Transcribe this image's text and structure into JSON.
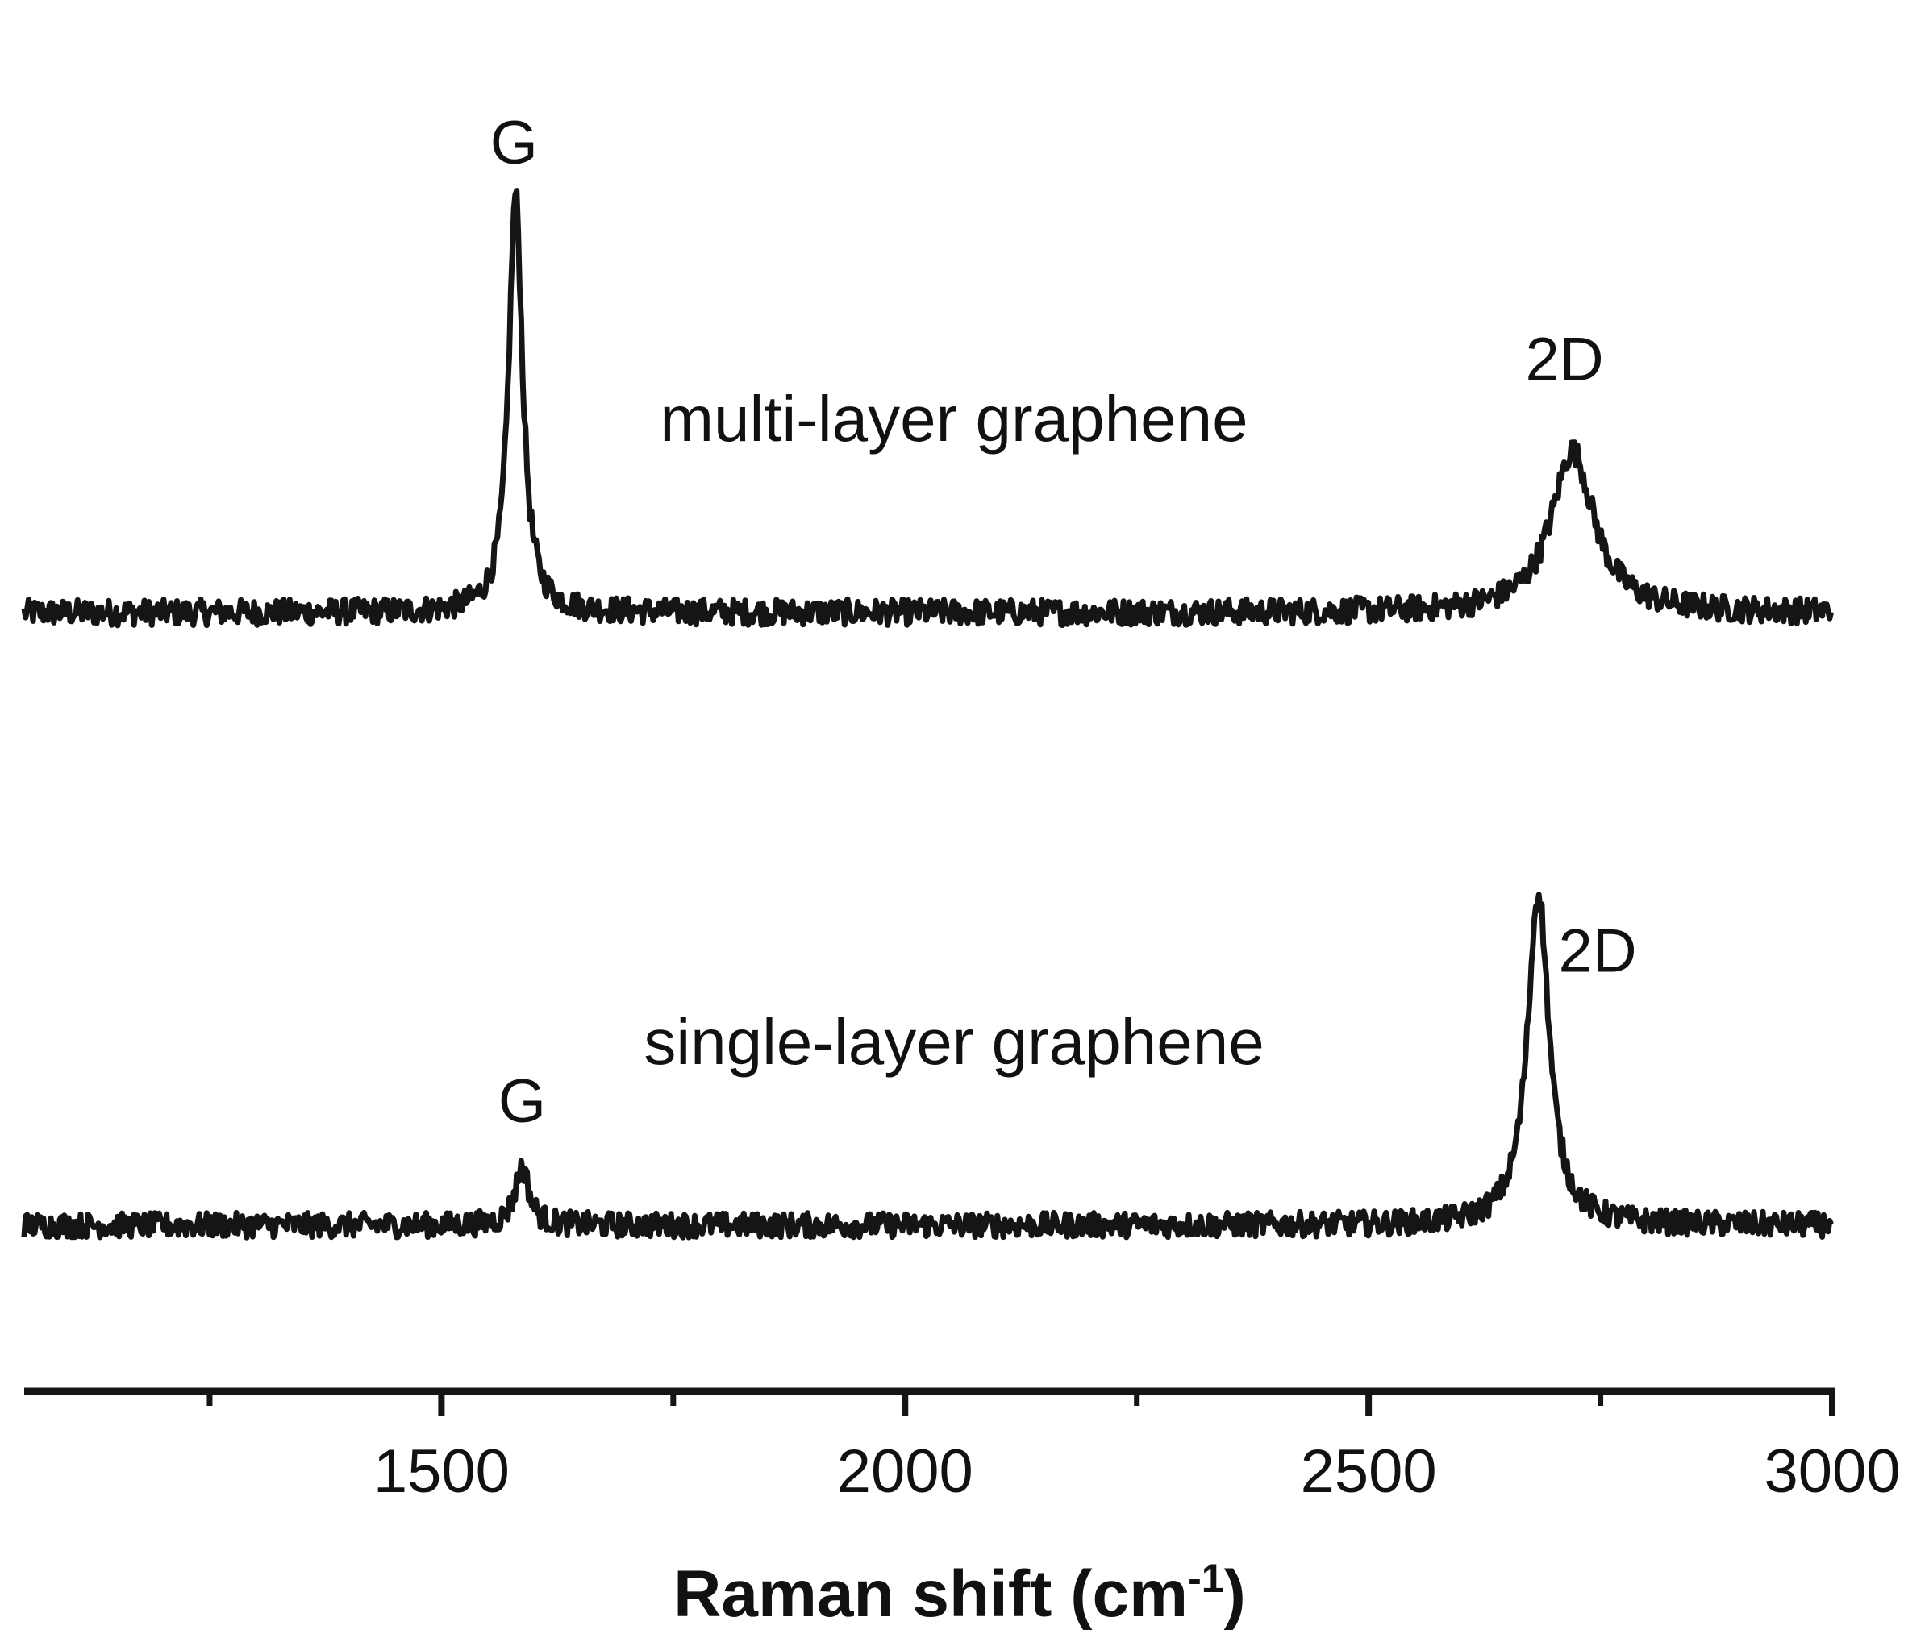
{
  "chart_data": {
    "type": "line",
    "xlabel": "Raman shift (cm",
    "xlabel_sup": "-1",
    "xlabel_end": ")",
    "xlim": [
      1050,
      3000
    ],
    "x_ticks_major": [
      1500,
      2000,
      2500,
      3000
    ],
    "x_tick_labels": [
      "1500",
      "2000",
      "2500",
      "3000"
    ],
    "x_ticks_minor": [
      1250,
      1750,
      2250,
      2750
    ],
    "y_axis_shown": false,
    "grid": false,
    "line_color": "#151515",
    "series": [
      {
        "name": "multi-layer graphene",
        "baseline": 1,
        "peaks": [
          {
            "label": "G",
            "x": 1580,
            "height": 9.8,
            "width": 9
          },
          {
            "label": "2D",
            "x": 2720,
            "height": 4.4,
            "width": 28
          }
        ]
      },
      {
        "name": "single-layer graphene",
        "baseline": 1,
        "peaks": [
          {
            "label": "G",
            "x": 1587,
            "height": 2.3,
            "width": 9
          },
          {
            "label": "2D",
            "x": 2683,
            "height": 8.4,
            "width": 14
          }
        ]
      }
    ]
  }
}
